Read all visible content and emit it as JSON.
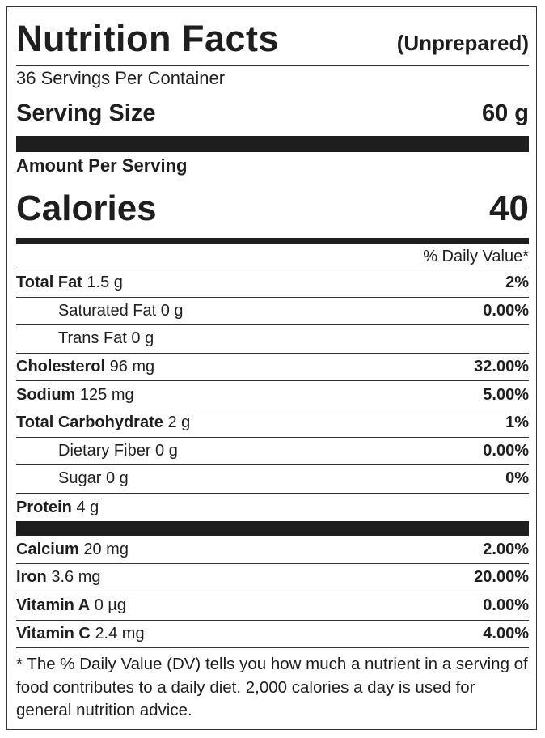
{
  "header": {
    "title": "Nutrition Facts",
    "subtitle": "(Unprepared)",
    "servings": "36 Servings Per Container",
    "serving_size_label": "Serving Size",
    "serving_size_value": "60 g"
  },
  "amount": {
    "label": "Amount Per Serving",
    "calories_label": "Calories",
    "calories_value": "40",
    "dv_header": "% Daily Value*"
  },
  "nutrients": [
    {
      "name": "Total Fat",
      "amount": "1.5 g",
      "dv": "2%"
    },
    {
      "name": "Saturated Fat",
      "amount": "0 g",
      "dv": "0.00%",
      "indent": true
    },
    {
      "name": "Trans Fat",
      "amount": "0 g",
      "indent": true
    },
    {
      "name": "Cholesterol",
      "amount": "96 mg",
      "dv": "32.00%"
    },
    {
      "name": "Sodium",
      "amount": "125 mg",
      "dv": "5.00%"
    },
    {
      "name": "Total Carbohydrate",
      "amount": "2 g",
      "dv": "1%"
    },
    {
      "name": "Dietary Fiber",
      "amount": "0 g",
      "dv": "0.00%",
      "indent": true
    },
    {
      "name": "Sugar",
      "amount": "0 g",
      "dv": "0%",
      "indent": true
    },
    {
      "name": "Protein",
      "amount": "4 g"
    }
  ],
  "vitamins": [
    {
      "name": "Calcium",
      "amount": "20 mg",
      "dv": "2.00%"
    },
    {
      "name": "Iron",
      "amount": "3.6 mg",
      "dv": "20.00%"
    },
    {
      "name": "Vitamin A",
      "amount": "0 µg",
      "dv": "0.00%"
    },
    {
      "name": "Vitamin C",
      "amount": "2.4 mg",
      "dv": "4.00%"
    }
  ],
  "footnote": "* The % Daily Value (DV) tells you how much a nutrient in a serving of food contributes to a daily diet. 2,000 calories a day is used for general nutrition advice."
}
